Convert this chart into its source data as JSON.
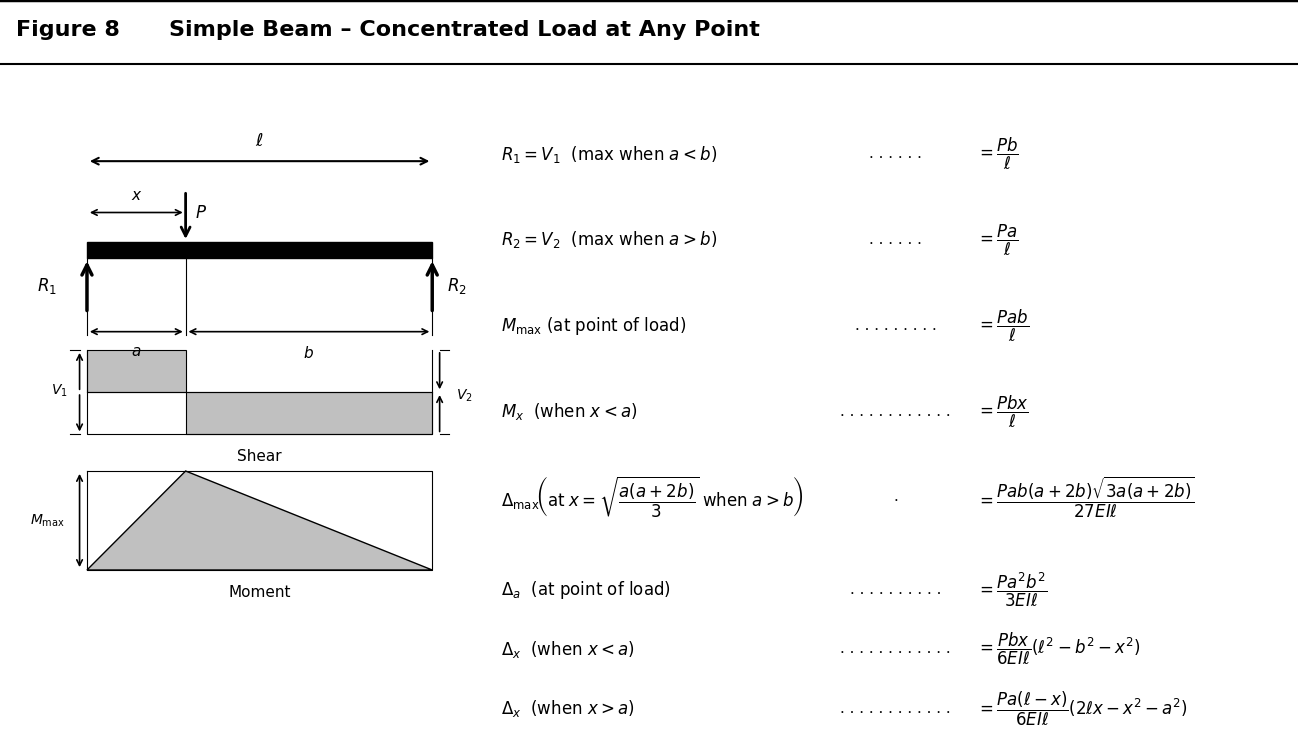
{
  "title": "Figure 8",
  "subtitle": "Simple Beam – Concentrated Load at Any Point",
  "background_color": "#ffffff",
  "header_bg": "#ffffff",
  "border_color": "#000000",
  "diagram": {
    "beam_color": "#000000",
    "shear_fill": "#b0b0b0",
    "moment_fill": "#b0b0b0"
  },
  "equations": [
    {
      "lhs": "$R_1 = V_1$  (max when $a < b$)",
      "dots": ". . . . .",
      "rhs": "$\\dfrac{Pb}{\\ell}$"
    },
    {
      "lhs": "$R_2 = V_2$  (max when $a > b$)",
      "dots": ". . . . .",
      "rhs": "$\\dfrac{Pa}{\\ell}$"
    },
    {
      "lhs": "$M_{\\mathrm{max}}$ (at point of load)",
      "dots": ". . . . . . . .",
      "rhs": "$\\dfrac{Pab}{\\ell}$"
    },
    {
      "lhs": "$M_x$  (when $x < a$)",
      "dots": ". . . . . . . . . . .",
      "rhs": "$\\dfrac{Pbx}{\\ell}$"
    },
    {
      "lhs": "$\\Delta_{\\mathrm{max}}\\!\\left(\\mathrm{at}\\; x = \\sqrt{\\dfrac{a(a+2b)}{3}}\\;\\mathrm{when}\\; a > b\\right)$",
      "dots": ".",
      "rhs": "$\\dfrac{Pab(a+2b)\\sqrt{3a(a+2b)}}{27EI\\ell}$"
    },
    {
      "lhs": "$\\Delta_a$  (at point of load)",
      "dots": ". . . . . . . . .",
      "rhs": "$\\dfrac{Pa^2b^2}{3EI\\ell}$"
    },
    {
      "lhs": "$\\Delta_x$  (when $x < a$)",
      "dots": ". . . . . . . . . . .",
      "rhs": "$\\dfrac{Pbx}{6EI\\ell}(\\ell^2 - b^2 - x^2)$"
    },
    {
      "lhs": "$\\Delta_x$  (when $x > a$)",
      "dots": ". . . . . . . . . . .",
      "rhs": "$\\dfrac{Pa(\\ell - x)}{6EI\\ell}(2\\ell x - x^2 - a^2)$"
    }
  ]
}
